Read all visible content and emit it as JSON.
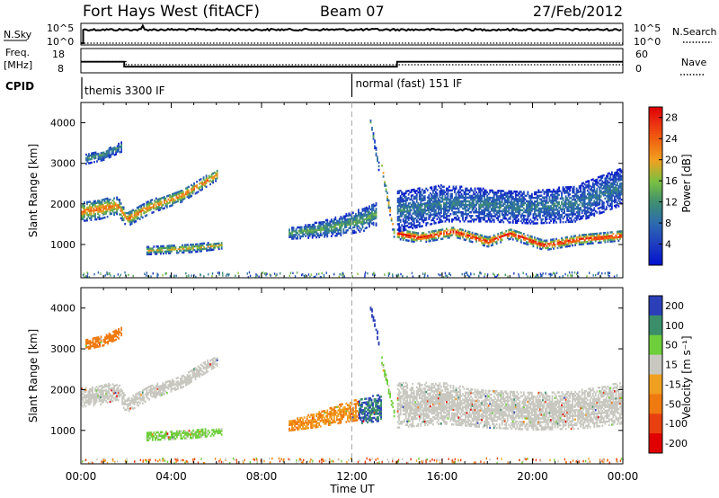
{
  "header": {
    "station": "Fort Hays West (fitACF)",
    "beam": "Beam 07",
    "date": "27/Feb/2012"
  },
  "side_labels": {
    "nsky": "N.Sky",
    "nsearch": "N.Search",
    "freq_line1": "Freq.",
    "freq_line2": "[MHz]",
    "nave": "Nave",
    "cpid": "CPID"
  },
  "chart_data": [
    {
      "type": "line",
      "title": "",
      "series": [
        {
          "name": "N.Sky",
          "style": "solid",
          "x": [
            "00:00",
            "00:10",
            "02:40",
            "02:50",
            "24:00"
          ],
          "y": [
            1,
            100000,
            100000,
            100000,
            100000
          ]
        },
        {
          "name": "N.Search",
          "style": "dotted",
          "x": [
            "00:00",
            "24:00"
          ],
          "y": [
            1,
            1
          ]
        }
      ],
      "left_ticks": [
        "10^5",
        "10^0"
      ],
      "right_ticks": [
        "10^5",
        "10^0"
      ]
    },
    {
      "type": "line",
      "series": [
        {
          "name": "Freq.",
          "style": "solid",
          "x": [
            "00:00",
            "01:55",
            "01:55",
            "14:00",
            "14:00",
            "24:00"
          ],
          "y": [
            12.9,
            12.9,
            10.3,
            10.3,
            12.9,
            12.9
          ]
        },
        {
          "name": "Nave",
          "style": "dotted",
          "x": [
            "00:00",
            "02:00",
            "02:00",
            "24:00"
          ],
          "y": [
            30,
            30,
            20,
            20
          ]
        }
      ],
      "left_ticks": [
        "18",
        "8"
      ],
      "right_ticks": [
        "60",
        "0"
      ]
    },
    {
      "type": "table",
      "name": "CPID",
      "segments": [
        {
          "start": "00:00",
          "label": "themis 3300 IF"
        },
        {
          "start": "12:00",
          "label": "normal (fast) 151 IF"
        }
      ]
    },
    {
      "type": "heatmap",
      "name": "Power",
      "xlabel": "",
      "ylabel": "Slant Range [km]",
      "xlim": [
        "00:00",
        "24:00"
      ],
      "ylim": [
        180,
        4500
      ],
      "yticks": [
        1000,
        2000,
        3000,
        4000
      ],
      "colorbar": {
        "label": "Power [dB]",
        "ticks": [
          4,
          8,
          12,
          16,
          20,
          24,
          28
        ],
        "range": [
          0,
          30
        ]
      },
      "bands": [
        {
          "t": [
            0.0,
            0.8,
            1.6,
            2.0,
            3.0,
            4.5,
            6.0
          ],
          "center": [
            1800,
            1850,
            1950,
            1600,
            1900,
            2200,
            2700
          ],
          "width": [
            480,
            480,
            420,
            350,
            320,
            300,
            260
          ],
          "peak": 24
        },
        {
          "t": [
            0.2,
            1.0,
            1.8
          ],
          "center": [
            3100,
            3200,
            3400
          ],
          "width": [
            260,
            260,
            240
          ],
          "peak": 12
        },
        {
          "t": [
            2.9,
            4.0,
            5.0,
            6.2
          ],
          "center": [
            830,
            870,
            900,
            960
          ],
          "width": [
            180,
            200,
            200,
            160
          ],
          "peak": 20
        },
        {
          "t": [
            9.2,
            10.5,
            11.5,
            12.5,
            13.1
          ],
          "center": [
            1250,
            1350,
            1450,
            1600,
            1750
          ],
          "width": [
            260,
            380,
            480,
            560,
            560
          ],
          "peak": 14
        },
        {
          "t": [
            14.0,
            15.0,
            16.5,
            18.0,
            19.0,
            20.5,
            22.0,
            23.9
          ],
          "center": [
            1250,
            1150,
            1300,
            1050,
            1250,
            960,
            1100,
            1200
          ],
          "width": [
            260,
            250,
            250,
            240,
            250,
            230,
            240,
            240
          ],
          "peak": 30
        },
        {
          "t": [
            14.0,
            16.0,
            18.0,
            20.0,
            22.0,
            23.9
          ],
          "center": [
            1800,
            2000,
            1950,
            1900,
            2000,
            2400
          ],
          "width": [
            1000,
            900,
            800,
            800,
            900,
            900
          ],
          "peak": 10
        },
        {
          "t": [
            13.3,
            13.9
          ],
          "center": [
            2900,
            1100
          ],
          "width": [
            220,
            220
          ],
          "peak": 22
        },
        {
          "t": [
            12.8,
            13.2
          ],
          "center": [
            4000,
            2800
          ],
          "width": [
            200,
            200
          ],
          "peak": 12
        }
      ],
      "specks_y": [
        220,
        340
      ],
      "speck_peak": 10
    },
    {
      "type": "heatmap",
      "name": "Velocity",
      "xlabel": "Time UT",
      "ylabel": "Slant Range [km]",
      "xlim": [
        "00:00",
        "24:00"
      ],
      "ylim": [
        180,
        4500
      ],
      "xticks": [
        "00:00",
        "04:00",
        "08:00",
        "12:00",
        "16:00",
        "20:00",
        "00:00"
      ],
      "yticks": [
        1000,
        2000,
        3000,
        4000
      ],
      "colorbar": {
        "label": "Velocity [m s⁻¹]",
        "ticks": [
          200,
          100,
          50,
          15,
          -15,
          -50,
          -100,
          -200
        ],
        "colors": [
          "#2a3fb8",
          "#3a8f6a",
          "#6fcf3a",
          "#c8c8c0",
          "#f0a020",
          "#ef7a10",
          "#e84010",
          "#e00000"
        ]
      },
      "bands": [
        {
          "t": [
            0.0,
            0.8,
            1.6,
            2.0,
            3.0,
            4.5,
            6.0
          ],
          "center": [
            1800,
            1850,
            1950,
            1600,
            1900,
            2200,
            2700
          ],
          "width": [
            480,
            480,
            420,
            350,
            320,
            300,
            260
          ],
          "v": 0
        },
        {
          "t": [
            0.2,
            1.0,
            1.8
          ],
          "center": [
            3100,
            3200,
            3400
          ],
          "width": [
            260,
            260,
            240
          ],
          "v": -60
        },
        {
          "t": [
            2.9,
            4.0,
            5.0,
            6.2
          ],
          "center": [
            830,
            870,
            900,
            960
          ],
          "width": [
            180,
            200,
            200,
            160
          ],
          "v": 40
        },
        {
          "t": [
            9.2,
            10.5,
            11.5,
            12.3
          ],
          "center": [
            1100,
            1250,
            1400,
            1500
          ],
          "width": [
            240,
            360,
            460,
            520
          ],
          "v": -40
        },
        {
          "t": [
            12.3,
            13.3
          ],
          "center": [
            1450,
            1550
          ],
          "width": [
            600,
            650
          ],
          "v": 150
        },
        {
          "t": [
            14.0,
            16.0,
            18.0,
            20.0,
            22.0,
            23.9
          ],
          "center": [
            1600,
            1650,
            1500,
            1450,
            1500,
            1650
          ],
          "width": [
            1100,
            1000,
            900,
            900,
            950,
            1000
          ],
          "v": 0
        },
        {
          "t": [
            13.3,
            13.9
          ],
          "center": [
            2700,
            1300
          ],
          "width": [
            220,
            220
          ],
          "v": 40
        },
        {
          "t": [
            12.8,
            13.2
          ],
          "center": [
            4000,
            3100
          ],
          "width": [
            200,
            200
          ],
          "v": 200
        }
      ],
      "specks_y": [
        220,
        340
      ],
      "speck_v": -40
    }
  ]
}
